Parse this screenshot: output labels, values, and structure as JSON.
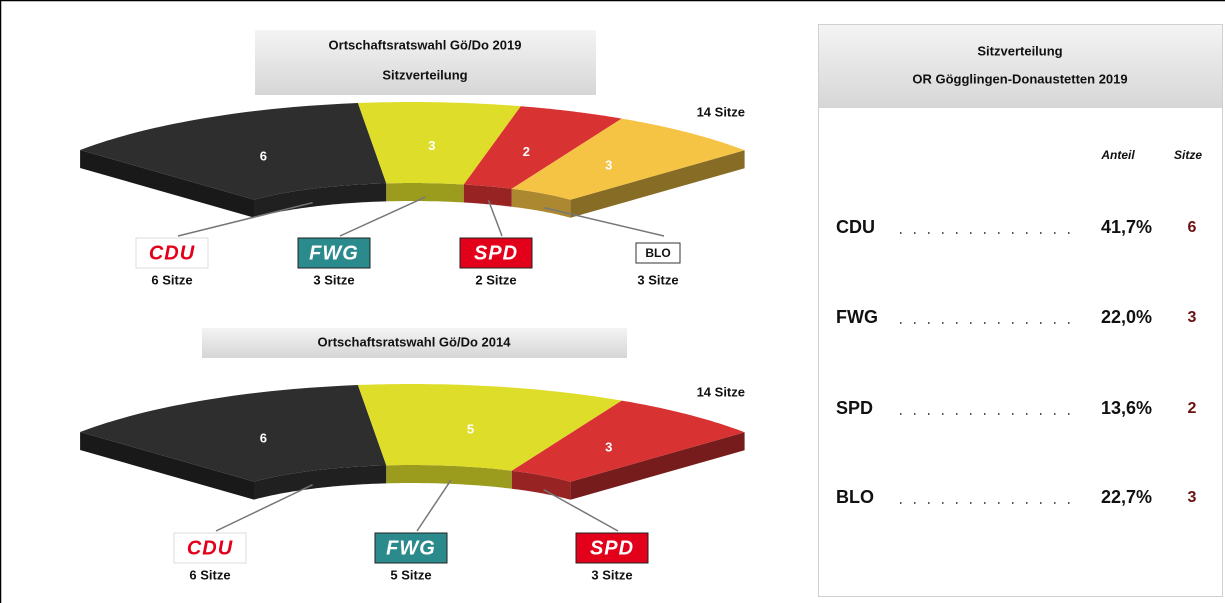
{
  "chart_data": [
    {
      "type": "parliament",
      "title": "Ortschaftsratswahl Gö/Do 2019",
      "subtitle": "Sitzverteilung",
      "total_label": "14 Sitze",
      "categories": [
        "CDU",
        "FWG",
        "SPD",
        "BLO"
      ],
      "values": [
        6,
        3,
        2,
        3
      ],
      "value_labels": [
        "6 Sitze",
        "3 Sitze",
        "2 Sitze",
        "3 Sitze"
      ],
      "colors": [
        "#2e2e2e",
        "#dede2a",
        "#d93232",
        "#f6c445"
      ],
      "logo_fill": [
        "#ffffff",
        "#2b8a8c",
        "#e2001a",
        "#ffffff"
      ],
      "logo_text_color": [
        "#e2001a",
        "#ffffff",
        "#ffffff",
        "#111111"
      ]
    },
    {
      "type": "parliament",
      "title": "Ortschaftsratswahl Gö/Do 2014",
      "total_label": "14 Sitze",
      "categories": [
        "CDU",
        "FWG",
        "SPD"
      ],
      "values": [
        6,
        5,
        3
      ],
      "value_labels": [
        "6 Sitze",
        "5 Sitze",
        "3 Sitze"
      ],
      "colors": [
        "#2e2e2e",
        "#dede2a",
        "#d93232"
      ],
      "logo_fill": [
        "#ffffff",
        "#2b8a8c",
        "#e2001a"
      ],
      "logo_text_color": [
        "#e2001a",
        "#ffffff",
        "#ffffff"
      ]
    }
  ],
  "table": {
    "title": "Sitzverteilung",
    "subtitle": "OR Gögglingen-Donaustetten 2019",
    "columns": [
      "Anteil",
      "Sitze"
    ],
    "rows": [
      {
        "party": "CDU",
        "share": "41,7%",
        "seats": "6"
      },
      {
        "party": "FWG",
        "share": "22,0%",
        "seats": "3"
      },
      {
        "party": "SPD",
        "share": "13,6%",
        "seats": "2"
      },
      {
        "party": "BLO",
        "share": "22,7%",
        "seats": "3"
      }
    ]
  }
}
